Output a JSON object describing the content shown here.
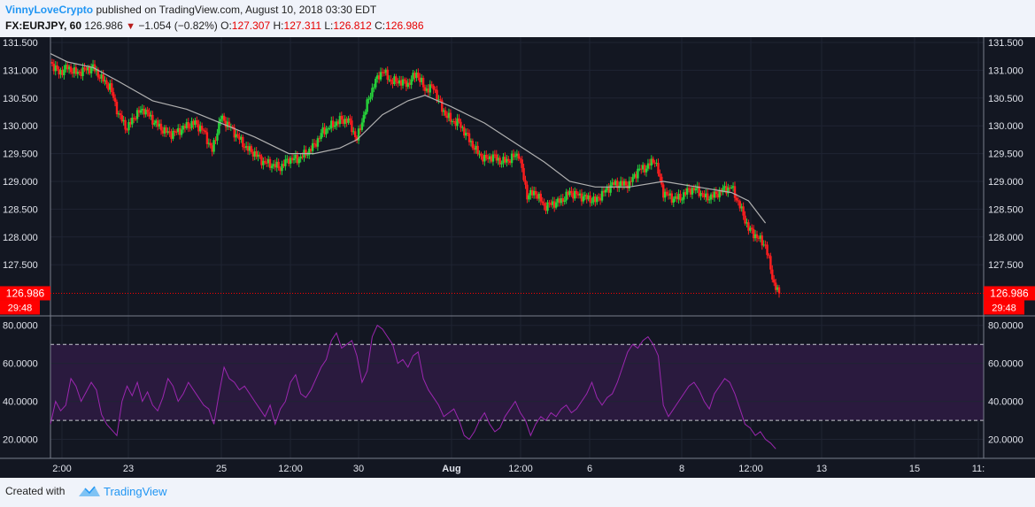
{
  "header": {
    "author": "VinnyLoveCrypto",
    "published_text": "published on TradingView.com, August 10, 2018 03:30 EDT",
    "symbol": "FX:EURJPY, 60",
    "price": "126.986",
    "change": "−1.054 (−0.82%)",
    "o_label": "O:",
    "o_value": "127.307",
    "h_label": "H:",
    "h_value": "127.311",
    "l_label": "L:",
    "l_value": "126.812",
    "c_label": "C:",
    "c_value": "126.986"
  },
  "footer": {
    "created_with": "Created with",
    "brand": "TradingView"
  },
  "colors": {
    "background": "#131722",
    "bullish": "#26d33a",
    "bearish": "#ff1e1e",
    "ma_line": "#b0b0b0",
    "rsi_line": "#9c27b0",
    "rsi_band": "#2a1a3e",
    "price_tag": "#ff0000",
    "axis_text": "#e0e3eb"
  },
  "chart_data": [
    {
      "type": "candlestick",
      "title": "",
      "ylim": [
        126.5,
        131.5
      ],
      "yticks": [
        "131.500",
        "131.000",
        "130.500",
        "130.000",
        "129.500",
        "129.000",
        "128.500",
        "128.000",
        "127.500"
      ],
      "xticks": [
        "2:00",
        "23",
        "25",
        "12:00",
        "30",
        "Aug",
        "12:00",
        "6",
        "8",
        "12:00",
        "13",
        "15",
        "11:"
      ],
      "last_price_label": "126.986",
      "countdown_label": "29:48",
      "moving_average": "gray line",
      "close_path": [
        [
          0,
          131.15
        ],
        [
          5,
          130.95
        ],
        [
          10,
          131.05
        ],
        [
          15,
          130.95
        ],
        [
          20,
          131.0
        ],
        [
          25,
          131.05
        ],
        [
          30,
          130.85
        ],
        [
          35,
          130.7
        ],
        [
          40,
          130.2
        ],
        [
          45,
          129.95
        ],
        [
          50,
          130.2
        ],
        [
          55,
          130.3
        ],
        [
          60,
          130.1
        ],
        [
          65,
          129.95
        ],
        [
          70,
          129.85
        ],
        [
          75,
          129.9
        ],
        [
          80,
          130.0
        ],
        [
          85,
          130.05
        ],
        [
          90,
          129.9
        ],
        [
          95,
          129.55
        ],
        [
          100,
          130.15
        ],
        [
          105,
          130.0
        ],
        [
          110,
          129.8
        ],
        [
          115,
          129.6
        ],
        [
          120,
          129.5
        ],
        [
          125,
          129.35
        ],
        [
          130,
          129.3
        ],
        [
          135,
          129.25
        ],
        [
          140,
          129.4
        ],
        [
          145,
          129.4
        ],
        [
          150,
          129.5
        ],
        [
          155,
          129.65
        ],
        [
          160,
          129.9
        ],
        [
          165,
          130.0
        ],
        [
          170,
          130.1
        ],
        [
          175,
          130.1
        ],
        [
          180,
          129.75
        ],
        [
          185,
          130.3
        ],
        [
          190,
          130.75
        ],
        [
          195,
          131.0
        ],
        [
          200,
          130.8
        ],
        [
          205,
          130.8
        ],
        [
          210,
          130.75
        ],
        [
          215,
          130.95
        ],
        [
          220,
          130.65
        ],
        [
          225,
          130.7
        ],
        [
          230,
          130.3
        ],
        [
          235,
          130.1
        ],
        [
          240,
          130.05
        ],
        [
          245,
          129.8
        ],
        [
          250,
          129.55
        ],
        [
          255,
          129.4
        ],
        [
          260,
          129.45
        ],
        [
          265,
          129.35
        ],
        [
          270,
          129.4
        ],
        [
          275,
          129.5
        ],
        [
          280,
          128.75
        ],
        [
          285,
          128.8
        ],
        [
          290,
          128.55
        ],
        [
          295,
          128.6
        ],
        [
          300,
          128.65
        ],
        [
          305,
          128.8
        ],
        [
          310,
          128.75
        ],
        [
          315,
          128.7
        ],
        [
          320,
          128.65
        ],
        [
          325,
          128.8
        ],
        [
          330,
          128.95
        ],
        [
          335,
          128.95
        ],
        [
          340,
          128.95
        ],
        [
          345,
          129.2
        ],
        [
          350,
          129.25
        ],
        [
          355,
          129.4
        ],
        [
          360,
          128.8
        ],
        [
          365,
          128.7
        ],
        [
          370,
          128.7
        ],
        [
          375,
          128.85
        ],
        [
          380,
          128.85
        ],
        [
          385,
          128.7
        ],
        [
          390,
          128.75
        ],
        [
          395,
          128.85
        ],
        [
          400,
          128.9
        ],
        [
          405,
          128.55
        ],
        [
          410,
          128.15
        ],
        [
          415,
          128.0
        ],
        [
          420,
          127.85
        ],
        [
          425,
          127.15
        ],
        [
          428,
          126.98
        ]
      ],
      "ma_path": [
        [
          0,
          131.3
        ],
        [
          10,
          131.15
        ],
        [
          25,
          131.05
        ],
        [
          40,
          130.8
        ],
        [
          60,
          130.45
        ],
        [
          80,
          130.3
        ],
        [
          100,
          130.05
        ],
        [
          120,
          129.8
        ],
        [
          140,
          129.5
        ],
        [
          155,
          129.5
        ],
        [
          170,
          129.6
        ],
        [
          180,
          129.75
        ],
        [
          195,
          130.2
        ],
        [
          210,
          130.45
        ],
        [
          220,
          130.55
        ],
        [
          235,
          130.35
        ],
        [
          255,
          130.05
        ],
        [
          275,
          129.65
        ],
        [
          290,
          129.35
        ],
        [
          305,
          129.0
        ],
        [
          320,
          128.9
        ],
        [
          340,
          128.9
        ],
        [
          360,
          129.0
        ],
        [
          380,
          128.9
        ],
        [
          400,
          128.8
        ],
        [
          410,
          128.65
        ],
        [
          420,
          128.25
        ]
      ]
    },
    {
      "type": "line",
      "name": "",
      "ylim": [
        10,
        85
      ],
      "yticks": [
        "80.0000",
        "60.0000",
        "40.0000",
        "20.0000"
      ],
      "overbought": 70,
      "oversold": 30,
      "rsi_path": [
        [
          0,
          28
        ],
        [
          3,
          40
        ],
        [
          6,
          35
        ],
        [
          9,
          38
        ],
        [
          12,
          52
        ],
        [
          15,
          48
        ],
        [
          18,
          40
        ],
        [
          21,
          45
        ],
        [
          24,
          50
        ],
        [
          27,
          46
        ],
        [
          30,
          33
        ],
        [
          33,
          28
        ],
        [
          36,
          25
        ],
        [
          39,
          22
        ],
        [
          42,
          40
        ],
        [
          45,
          48
        ],
        [
          48,
          43
        ],
        [
          51,
          50
        ],
        [
          54,
          40
        ],
        [
          57,
          45
        ],
        [
          60,
          38
        ],
        [
          63,
          35
        ],
        [
          66,
          42
        ],
        [
          69,
          52
        ],
        [
          72,
          48
        ],
        [
          75,
          40
        ],
        [
          78,
          44
        ],
        [
          81,
          50
        ],
        [
          84,
          46
        ],
        [
          87,
          42
        ],
        [
          90,
          38
        ],
        [
          93,
          36
        ],
        [
          96,
          28
        ],
        [
          99,
          44
        ],
        [
          102,
          58
        ],
        [
          105,
          52
        ],
        [
          108,
          50
        ],
        [
          111,
          46
        ],
        [
          114,
          48
        ],
        [
          117,
          44
        ],
        [
          120,
          40
        ],
        [
          123,
          36
        ],
        [
          126,
          32
        ],
        [
          129,
          38
        ],
        [
          132,
          28
        ],
        [
          135,
          36
        ],
        [
          138,
          40
        ],
        [
          141,
          50
        ],
        [
          144,
          54
        ],
        [
          147,
          44
        ],
        [
          150,
          42
        ],
        [
          153,
          46
        ],
        [
          156,
          52
        ],
        [
          159,
          58
        ],
        [
          162,
          62
        ],
        [
          165,
          72
        ],
        [
          168,
          76
        ],
        [
          171,
          68
        ],
        [
          174,
          70
        ],
        [
          177,
          72
        ],
        [
          180,
          64
        ],
        [
          183,
          50
        ],
        [
          186,
          56
        ],
        [
          189,
          74
        ],
        [
          192,
          80
        ],
        [
          195,
          78
        ],
        [
          198,
          74
        ],
        [
          201,
          70
        ],
        [
          204,
          60
        ],
        [
          207,
          62
        ],
        [
          210,
          58
        ],
        [
          213,
          64
        ],
        [
          216,
          66
        ],
        [
          219,
          52
        ],
        [
          222,
          46
        ],
        [
          225,
          42
        ],
        [
          228,
          38
        ],
        [
          231,
          32
        ],
        [
          234,
          34
        ],
        [
          237,
          36
        ],
        [
          240,
          30
        ],
        [
          243,
          22
        ],
        [
          246,
          20
        ],
        [
          249,
          24
        ],
        [
          252,
          30
        ],
        [
          255,
          34
        ],
        [
          258,
          28
        ],
        [
          261,
          24
        ],
        [
          264,
          26
        ],
        [
          267,
          32
        ],
        [
          270,
          36
        ],
        [
          273,
          40
        ],
        [
          276,
          34
        ],
        [
          279,
          30
        ],
        [
          282,
          22
        ],
        [
          285,
          28
        ],
        [
          288,
          32
        ],
        [
          291,
          30
        ],
        [
          294,
          34
        ],
        [
          297,
          32
        ],
        [
          300,
          36
        ],
        [
          303,
          38
        ],
        [
          306,
          34
        ],
        [
          309,
          36
        ],
        [
          312,
          40
        ],
        [
          315,
          44
        ],
        [
          318,
          50
        ],
        [
          321,
          42
        ],
        [
          324,
          38
        ],
        [
          327,
          42
        ],
        [
          330,
          44
        ],
        [
          333,
          50
        ],
        [
          336,
          58
        ],
        [
          339,
          66
        ],
        [
          342,
          70
        ],
        [
          345,
          68
        ],
        [
          348,
          72
        ],
        [
          351,
          74
        ],
        [
          354,
          70
        ],
        [
          357,
          64
        ],
        [
          360,
          38
        ],
        [
          363,
          32
        ],
        [
          366,
          36
        ],
        [
          369,
          40
        ],
        [
          372,
          44
        ],
        [
          375,
          48
        ],
        [
          378,
          50
        ],
        [
          381,
          46
        ],
        [
          384,
          40
        ],
        [
          387,
          36
        ],
        [
          390,
          44
        ],
        [
          393,
          48
        ],
        [
          396,
          52
        ],
        [
          399,
          50
        ],
        [
          402,
          44
        ],
        [
          405,
          36
        ],
        [
          408,
          28
        ],
        [
          411,
          26
        ],
        [
          414,
          22
        ],
        [
          417,
          24
        ],
        [
          420,
          20
        ],
        [
          423,
          18
        ],
        [
          426,
          15
        ]
      ]
    }
  ]
}
